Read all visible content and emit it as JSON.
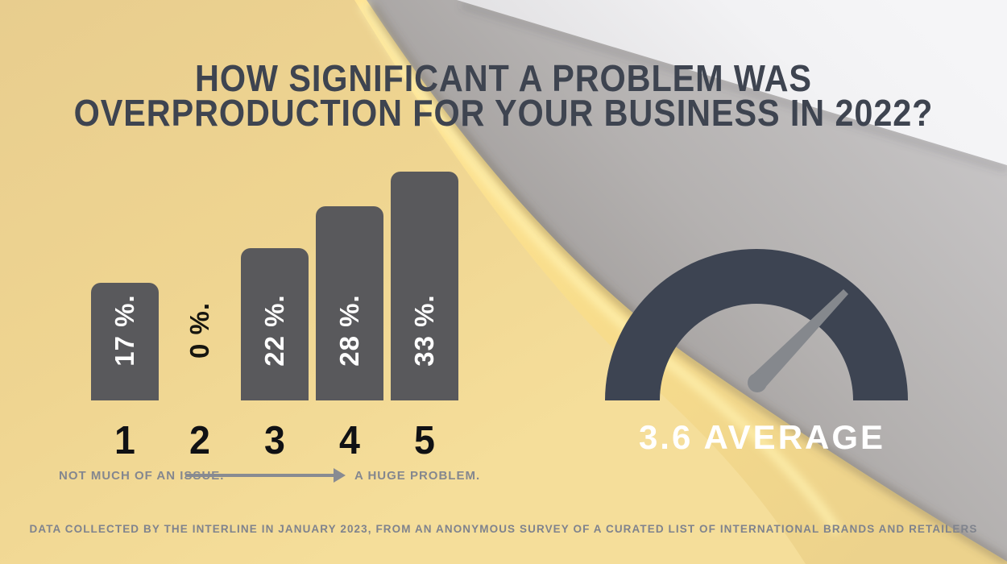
{
  "title": {
    "line1": "HOW SIGNIFICANT A PROBLEM WAS",
    "line2": "OVERPRODUCTION FOR YOUR BUSINESS IN 2022?"
  },
  "chart_data": [
    {
      "type": "bar",
      "title": "HOW SIGNIFICANT A PROBLEM WAS OVERPRODUCTION FOR YOUR BUSINESS IN 2022?",
      "categories": [
        "1",
        "2",
        "3",
        "4",
        "5"
      ],
      "values": [
        17,
        0,
        22,
        28,
        33
      ],
      "unit": "%",
      "value_labels": [
        "17 %.",
        "0 %.",
        "22 %.",
        "28 %.",
        "33 %."
      ],
      "ylim": [
        0,
        35
      ],
      "grid": false,
      "axis_note_left": "NOT MUCH OF AN ISSUE.",
      "axis_note_right": "A HUGE PROBLEM.",
      "bar_color": "#59595c",
      "value_label_color": "#ffffff",
      "zero_label_color": "#16150f"
    },
    {
      "type": "gauge",
      "value": 3.6,
      "min": 1,
      "max": 5,
      "label": "3.6 AVERAGE",
      "arc_color": "#3d4452",
      "needle_color": "#85888d"
    }
  ],
  "footer": {
    "text": "DATA COLLECTED BY THE INTERLINE IN JANUARY 2023, FROM AN ANONYMOUS SURVEY OF A CURATED LIST OF INTERNATIONAL BRANDS AND RETAILERS"
  },
  "colors": {
    "background_gold": "#eed392",
    "stripe_gold": "#ffe493",
    "sheet_gray": "#b3b0af",
    "sheet_light": "#f2f2f4",
    "ink_dark": "#3e4450",
    "label_gray": "#84878f"
  }
}
